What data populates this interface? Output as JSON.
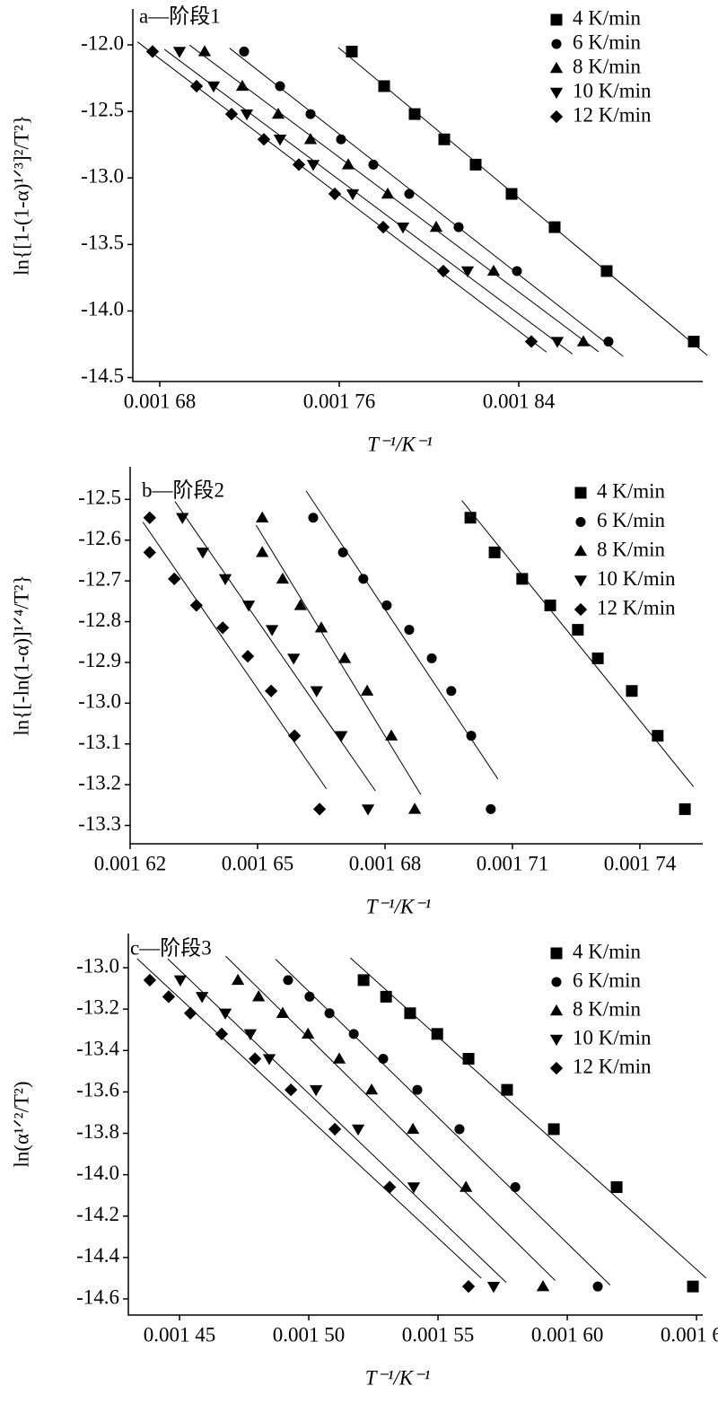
{
  "chart_data": [
    {
      "type": "scatter",
      "title": "a—阶段1",
      "x_label": "T⁻¹/K⁻¹",
      "y_label": "ln{[1-(1-α)¹ᐟ³]²/T²}",
      "xlim": [
        0.001668,
        0.001922
      ],
      "ylim": [
        -14.53,
        -11.73
      ],
      "xticks": [
        {
          "value": 0.00168,
          "label": "0.001 68"
        },
        {
          "value": 0.00176,
          "label": "0.001 76"
        },
        {
          "value": 0.00184,
          "label": "0.001 84"
        }
      ],
      "yticks": [
        {
          "value": -12.0,
          "label": "-12.0"
        },
        -12.5,
        {
          "value": -13.0,
          "label": "-13.0"
        },
        -13.5,
        {
          "value": -14.0,
          "label": "-14.0"
        },
        -14.5
      ],
      "legend": "upper right",
      "series": [
        {
          "name": "4 K/min",
          "color": "#000000",
          "marker": "square",
          "x": [
            0.0017656,
            0.00178,
            0.0017936,
            0.0018068,
            0.0018208,
            0.0018368,
            0.001856,
            0.0018792,
            0.001918
          ],
          "values": [
            -12.05,
            -12.31,
            -12.52,
            -12.71,
            -12.9,
            -13.12,
            -13.37,
            -13.7,
            -14.23
          ]
        },
        {
          "name": "6 K/min",
          "color": "#000000",
          "marker": "circle",
          "x": [
            0.0017176,
            0.0017336,
            0.0017472,
            0.0017608,
            0.0017752,
            0.0017912,
            0.0018132,
            0.0018392,
            0.00188
          ],
          "values": [
            -12.05,
            -12.31,
            -12.52,
            -12.71,
            -12.9,
            -13.12,
            -13.37,
            -13.7,
            -14.23
          ]
        },
        {
          "name": "8 K/min",
          "color": "#000000",
          "marker": "triangle-up",
          "x": [
            0.0017,
            0.0017168,
            0.0017328,
            0.0017472,
            0.001764,
            0.0017816,
            0.0018032,
            0.0018288,
            0.0018688
          ],
          "values": [
            -12.05,
            -12.31,
            -12.52,
            -12.71,
            -12.9,
            -13.12,
            -13.37,
            -13.7,
            -14.23
          ]
        },
        {
          "name": "10 K/min",
          "color": "#000000",
          "marker": "triangle-down",
          "x": [
            0.0016888,
            0.001704,
            0.0017188,
            0.0017336,
            0.0017484,
            0.001766,
            0.0017884,
            0.0018172,
            0.0018572
          ],
          "values": [
            -12.05,
            -12.31,
            -12.52,
            -12.71,
            -12.9,
            -13.12,
            -13.37,
            -13.7,
            -14.23
          ]
        },
        {
          "name": "12 K/min",
          "color": "#000000",
          "marker": "diamond",
          "x": [
            0.0016768,
            0.0016964,
            0.001712,
            0.0017264,
            0.001742,
            0.001758,
            0.0017796,
            0.0018064,
            0.0018456
          ],
          "values": [
            -12.05,
            -12.31,
            -12.52,
            -12.71,
            -12.9,
            -13.12,
            -13.37,
            -13.7,
            -14.23
          ]
        }
      ]
    },
    {
      "type": "scatter",
      "title": "b—阶段2",
      "x_label": "T⁻¹/K⁻¹",
      "y_label": "ln{[-ln(1-α)]¹ᐟ⁴/T²}",
      "xlim": [
        0.00162,
        0.0017548
      ],
      "ylim": [
        -13.345,
        -12.42
      ],
      "xticks": [
        {
          "value": 0.00162,
          "label": "0.001 62"
        },
        {
          "value": 0.00165,
          "label": "0.001 65"
        },
        {
          "value": 0.00168,
          "label": "0.001 68"
        },
        {
          "value": 0.00171,
          "label": "0.001 71"
        },
        {
          "value": 0.00174,
          "label": "0.001 74"
        }
      ],
      "yticks": [
        -12.5,
        -12.6,
        -12.7,
        -12.8,
        -12.9,
        {
          "value": -13.0,
          "label": "-13.0"
        },
        -13.1,
        -13.2,
        -13.3
      ],
      "legend": "upper right",
      "series": [
        {
          "name": "4 K/min",
          "color": "#000000",
          "marker": "square",
          "x": [
            0.0017001,
            0.0017058,
            0.0017123,
            0.0017189,
            0.0017254,
            0.0017301,
            0.0017381,
            0.0017442,
            0.0017506
          ],
          "values": [
            -12.545,
            -12.63,
            -12.695,
            -12.76,
            -12.82,
            -12.89,
            -12.97,
            -13.08,
            -13.26
          ]
        },
        {
          "name": "6 K/min",
          "color": "#000000",
          "marker": "circle",
          "x": [
            0.0016631,
            0.0016701,
            0.0016749,
            0.0016804,
            0.0016857,
            0.001691,
            0.0016956,
            0.0017003,
            0.0017049
          ],
          "values": [
            -12.545,
            -12.63,
            -12.695,
            -12.76,
            -12.82,
            -12.89,
            -12.97,
            -13.08,
            -13.26
          ]
        },
        {
          "name": "8 K/min",
          "color": "#000000",
          "marker": "triangle-up",
          "x": [
            0.0016511,
            0.0016511,
            0.0016559,
            0.0016601,
            0.001665,
            0.0016705,
            0.0016758,
            0.0016815,
            0.001687
          ],
          "values": [
            -12.545,
            -12.63,
            -12.695,
            -12.76,
            -12.815,
            -12.89,
            -12.97,
            -13.08,
            -13.26
          ]
        },
        {
          "name": "10 K/min",
          "color": "#000000",
          "marker": "triangle-down",
          "x": [
            0.0016323,
            0.0016371,
            0.0016424,
            0.0016479,
            0.0016534,
            0.0016585,
            0.0016639,
            0.0016697,
            0.001676
          ],
          "values": [
            -12.545,
            -12.63,
            -12.695,
            -12.76,
            -12.82,
            -12.89,
            -12.97,
            -13.08,
            -13.26
          ]
        },
        {
          "name": "12 K/min",
          "color": "#000000",
          "marker": "diamond",
          "x": [
            0.0016246,
            0.0016246,
            0.0016304,
            0.0016356,
            0.0016418,
            0.0016477,
            0.0016532,
            0.0016587,
            0.0016646
          ],
          "values": [
            -12.545,
            -12.63,
            -12.695,
            -12.76,
            -12.815,
            -12.885,
            -12.97,
            -13.08,
            -13.26
          ]
        }
      ]
    },
    {
      "type": "scatter",
      "title": "c—阶段3",
      "x_label": "T⁻¹/K⁻¹",
      "y_label": "ln(α¹ᐟ²/T²)",
      "xlim": [
        0.0014302,
        0.0016524
      ],
      "ylim": [
        -14.678,
        -12.835
      ],
      "xticks": [
        {
          "value": 0.00145,
          "label": "0.001 45"
        },
        {
          "value": 0.0015,
          "label": "0.001 50"
        },
        {
          "value": 0.00155,
          "label": "0.001 55"
        },
        {
          "value": 0.0016,
          "label": "0.001 60"
        },
        {
          "value": 0.00165,
          "label": "0.001 65"
        }
      ],
      "yticks": [
        {
          "value": -13.0,
          "label": "-13.0"
        },
        -13.2,
        -13.4,
        -13.6,
        -13.8,
        {
          "value": -14.0,
          "label": "-14.0"
        },
        -14.2,
        -14.4,
        -14.6
      ],
      "legend": "upper right",
      "series": [
        {
          "name": "4 K/min",
          "color": "#000000",
          "marker": "square",
          "x": [
            0.0015212,
            0.0015299,
            0.0015392,
            0.0015497,
            0.0015618,
            0.0015767,
            0.0015948,
            0.0016191,
            0.0016486
          ],
          "values": [
            -13.06,
            -13.14,
            -13.22,
            -13.32,
            -13.44,
            -13.59,
            -13.78,
            -14.06,
            -14.54
          ]
        },
        {
          "name": "6 K/min",
          "color": "#000000",
          "marker": "circle",
          "x": [
            0.001492,
            0.0015003,
            0.001508,
            0.0015174,
            0.0015288,
            0.001542,
            0.0015583,
            0.0015799,
            0.0016118
          ],
          "values": [
            -13.06,
            -13.14,
            -13.22,
            -13.32,
            -13.44,
            -13.59,
            -13.78,
            -14.06,
            -14.54
          ]
        },
        {
          "name": "8 K/min",
          "color": "#000000",
          "marker": "triangle-up",
          "x": [
            0.0014726,
            0.0014806,
            0.0014899,
            0.0014997,
            0.0015118,
            0.0015243,
            0.0015403,
            0.0015608,
            0.0015906
          ],
          "values": [
            -13.06,
            -13.14,
            -13.22,
            -13.32,
            -13.44,
            -13.59,
            -13.78,
            -14.06,
            -14.54
          ]
        },
        {
          "name": "10 K/min",
          "color": "#000000",
          "marker": "triangle-down",
          "x": [
            0.0014503,
            0.0014587,
            0.0014677,
            0.0014774,
            0.0014847,
            0.0015028,
            0.0015191,
            0.0015406,
            0.0015715
          ],
          "values": [
            -13.06,
            -13.14,
            -13.22,
            -13.32,
            -13.44,
            -13.59,
            -13.78,
            -14.06,
            -14.54
          ]
        },
        {
          "name": "12 K/min",
          "color": "#000000",
          "marker": "diamond",
          "x": [
            0.0014385,
            0.0014458,
            0.0014542,
            0.0014663,
            0.0014792,
            0.0014931,
            0.0015101,
            0.0015313,
            0.0015618
          ],
          "values": [
            -13.06,
            -13.14,
            -13.22,
            -13.32,
            -13.44,
            -13.59,
            -13.78,
            -14.06,
            -14.54
          ]
        }
      ]
    }
  ]
}
